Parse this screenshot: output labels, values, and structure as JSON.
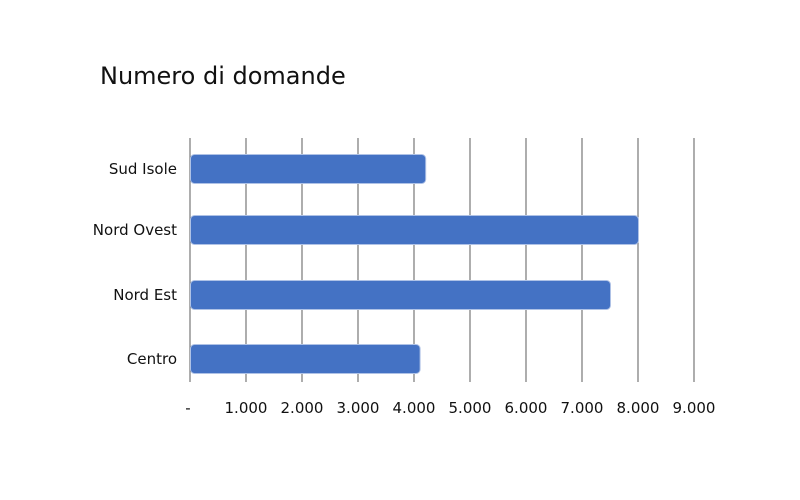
{
  "chart_data": {
    "type": "bar",
    "orientation": "horizontal",
    "title": "Numero di domande",
    "categories": [
      "Sud Isole",
      "Nord Ovest",
      "Nord Est",
      "Centro"
    ],
    "values": [
      4200,
      8000,
      7500,
      4100
    ],
    "xlim": [
      0,
      9000
    ],
    "xticks": [
      0,
      1000,
      2000,
      3000,
      4000,
      5000,
      6000,
      7000,
      8000,
      9000
    ],
    "xtick_labels": [
      "-",
      "1.000",
      "2.000",
      "3.000",
      "4.000",
      "5.000",
      "6.000",
      "7.000",
      "8.000",
      "9.000"
    ],
    "grid": "vertical",
    "legend": "none",
    "bar_color": "#4472C4",
    "bar_stroke": "#AFC2E6",
    "grid_color": "#333333"
  }
}
